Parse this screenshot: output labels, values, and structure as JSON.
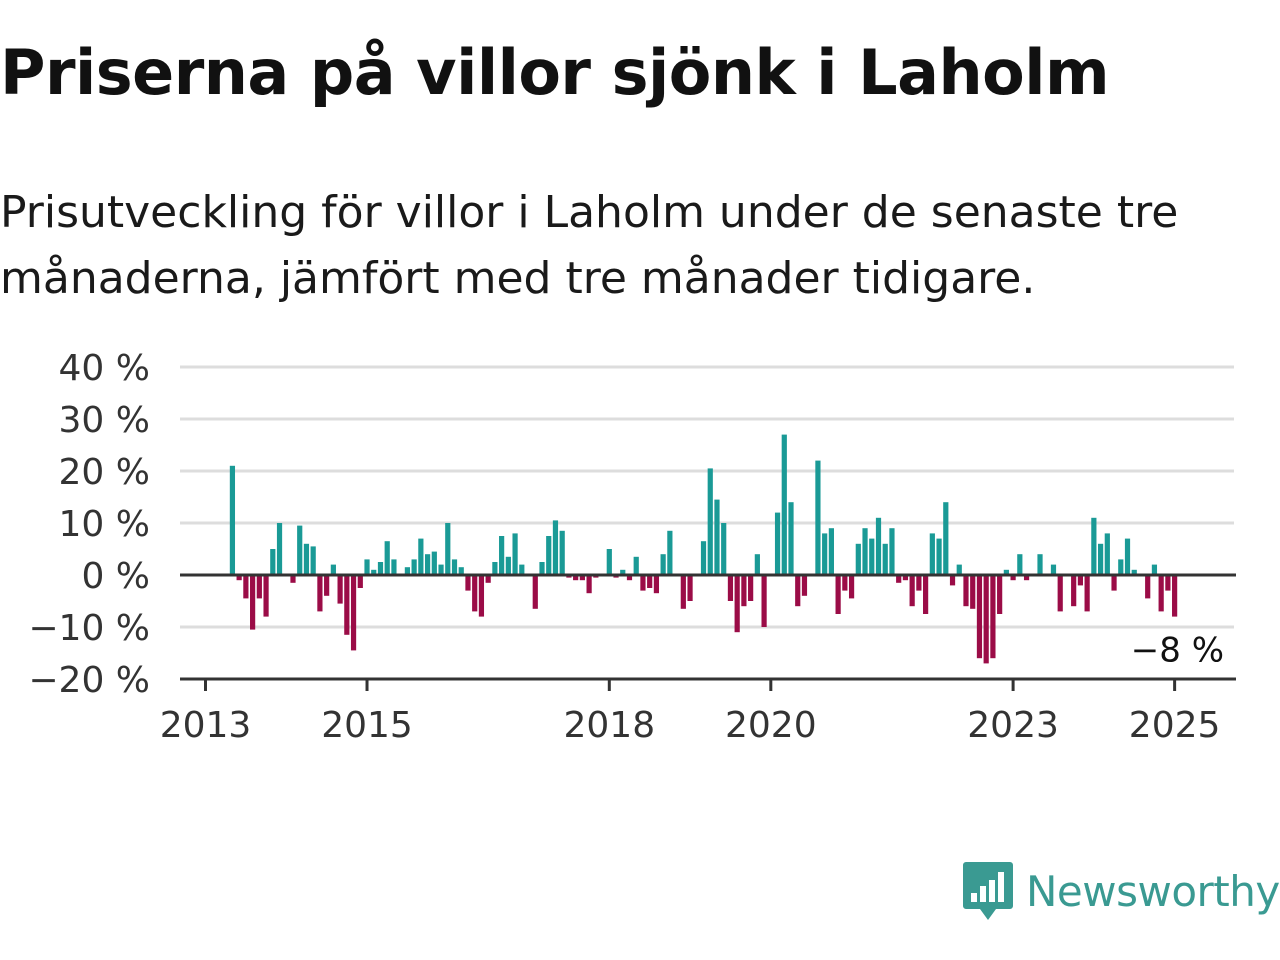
{
  "title": "Priserna på villor sjönk i Laholm",
  "subtitle": "Prisutveckling för villor i Laholm under de senaste tre månaderna, jämfört med tre månader tidigare.",
  "brand": {
    "name": "Newsworthy",
    "color": "#3a9a92"
  },
  "colors": {
    "positive": "#1a9a96",
    "negative": "#9b0c47",
    "axis": "#333333",
    "grid": "#dddddd"
  },
  "chart_data": {
    "type": "bar",
    "ylim": [
      -20,
      40
    ],
    "y_ticks": [
      40,
      30,
      20,
      10,
      0,
      -10,
      -20
    ],
    "y_tick_labels": [
      "40 %",
      "30 %",
      "20 %",
      "10 %",
      "0 %",
      "−10 %",
      "−20 %"
    ],
    "x_tick_labels": [
      "2013",
      "2015",
      "2018",
      "2020",
      "2023",
      "2025"
    ],
    "x_tick_years": [
      2013,
      2015,
      2018,
      2020,
      2023,
      2025
    ],
    "start_month": "2013-05",
    "grid": true,
    "last_value_label": "−8 %",
    "values": [
      21,
      -1,
      -4.5,
      -10.5,
      -4.5,
      -8,
      5,
      10,
      0,
      -1.5,
      9.5,
      6,
      5.5,
      -7,
      -4,
      2,
      -5.5,
      -11.5,
      -14.5,
      -2.5,
      3,
      1,
      2.5,
      6.5,
      3,
      0,
      1.5,
      3,
      7,
      4,
      4.5,
      2,
      10,
      3,
      1.5,
      -3,
      -7,
      -8,
      -1.5,
      2.5,
      7.5,
      3.5,
      8,
      2,
      0,
      -6.5,
      2.5,
      7.5,
      10.5,
      8.5,
      -0.5,
      -1,
      -1,
      -3.5,
      -0.5,
      0,
      5,
      -0.5,
      1,
      -1,
      3.5,
      -3,
      -2.5,
      -3.5,
      4,
      8.5,
      0,
      -6.5,
      -5,
      0,
      6.5,
      20.5,
      14.5,
      10,
      -5,
      -11,
      -6,
      -5,
      4,
      -10,
      0,
      12,
      27,
      14,
      -6,
      -4,
      0,
      22,
      8,
      9,
      -7.5,
      -3,
      -4.5,
      6,
      9,
      7,
      11,
      6,
      9,
      -1.5,
      -1,
      -6,
      -3,
      -7.5,
      8,
      7,
      14,
      -2,
      2,
      -6,
      -6.5,
      -16,
      -17,
      -16,
      -7.5,
      1,
      -1,
      4,
      -1,
      0,
      4,
      0,
      2,
      -7,
      0,
      -6,
      -2,
      -7,
      11,
      6,
      8,
      -3,
      3,
      7,
      1,
      0,
      -4.5,
      2,
      -7,
      -3,
      -8
    ]
  }
}
